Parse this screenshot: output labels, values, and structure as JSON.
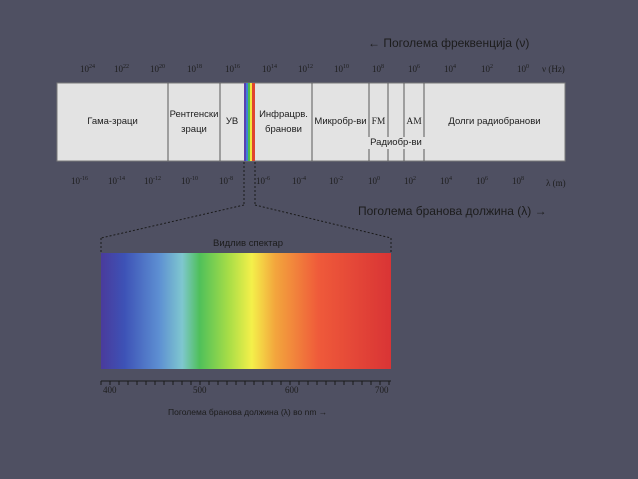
{
  "colors": {
    "background": "#4f5062",
    "band_fill": "#e3e3e3",
    "band_border": "#7a7a7a",
    "scale_text": "#1d1d1d"
  },
  "frequency": {
    "heading": "← Поголема фреквенција (ν)",
    "unit": "ν (Hz)",
    "ticks": [
      {
        "base": "10",
        "exp": "24"
      },
      {
        "base": "10",
        "exp": "22"
      },
      {
        "base": "10",
        "exp": "20"
      },
      {
        "base": "10",
        "exp": "18"
      },
      {
        "base": "10",
        "exp": "16"
      },
      {
        "base": "10",
        "exp": "14"
      },
      {
        "base": "10",
        "exp": "12"
      },
      {
        "base": "10",
        "exp": "10"
      },
      {
        "base": "10",
        "exp": "8"
      },
      {
        "base": "10",
        "exp": "6"
      },
      {
        "base": "10",
        "exp": "4"
      },
      {
        "base": "10",
        "exp": "2"
      },
      {
        "base": "10",
        "exp": "0"
      }
    ]
  },
  "wavelength": {
    "heading": "Поголема бранова должина (λ) →",
    "unit": "λ (m)",
    "ticks": [
      {
        "base": "10",
        "exp": "-16"
      },
      {
        "base": "10",
        "exp": "-14"
      },
      {
        "base": "10",
        "exp": "-12"
      },
      {
        "base": "10",
        "exp": "-10"
      },
      {
        "base": "10",
        "exp": "-8"
      },
      {
        "base": "10",
        "exp": "-6"
      },
      {
        "base": "10",
        "exp": "-4"
      },
      {
        "base": "10",
        "exp": "-2"
      },
      {
        "base": "10",
        "exp": "0"
      },
      {
        "base": "10",
        "exp": "2"
      },
      {
        "base": "10",
        "exp": "4"
      },
      {
        "base": "10",
        "exp": "6"
      },
      {
        "base": "10",
        "exp": "8"
      }
    ]
  },
  "bands": {
    "gamma": "Гама-зраци",
    "xray_line1": "Рентгенски",
    "xray_line2": "зраци",
    "uv": "УВ",
    "infrared_line1": "Инфрацрв.",
    "infrared_line2": "бранови",
    "microwave": "Микробр-ви",
    "fm": "FM",
    "am": "AM",
    "radio": "Радиобр-ви",
    "long_radio": "Долги радиобранови"
  },
  "visible": {
    "title": "Видлив спектар",
    "ticks": [
      "400",
      "500",
      "600",
      "700"
    ],
    "axis_label": "Поголема бранова должина (λ) во nm →"
  }
}
